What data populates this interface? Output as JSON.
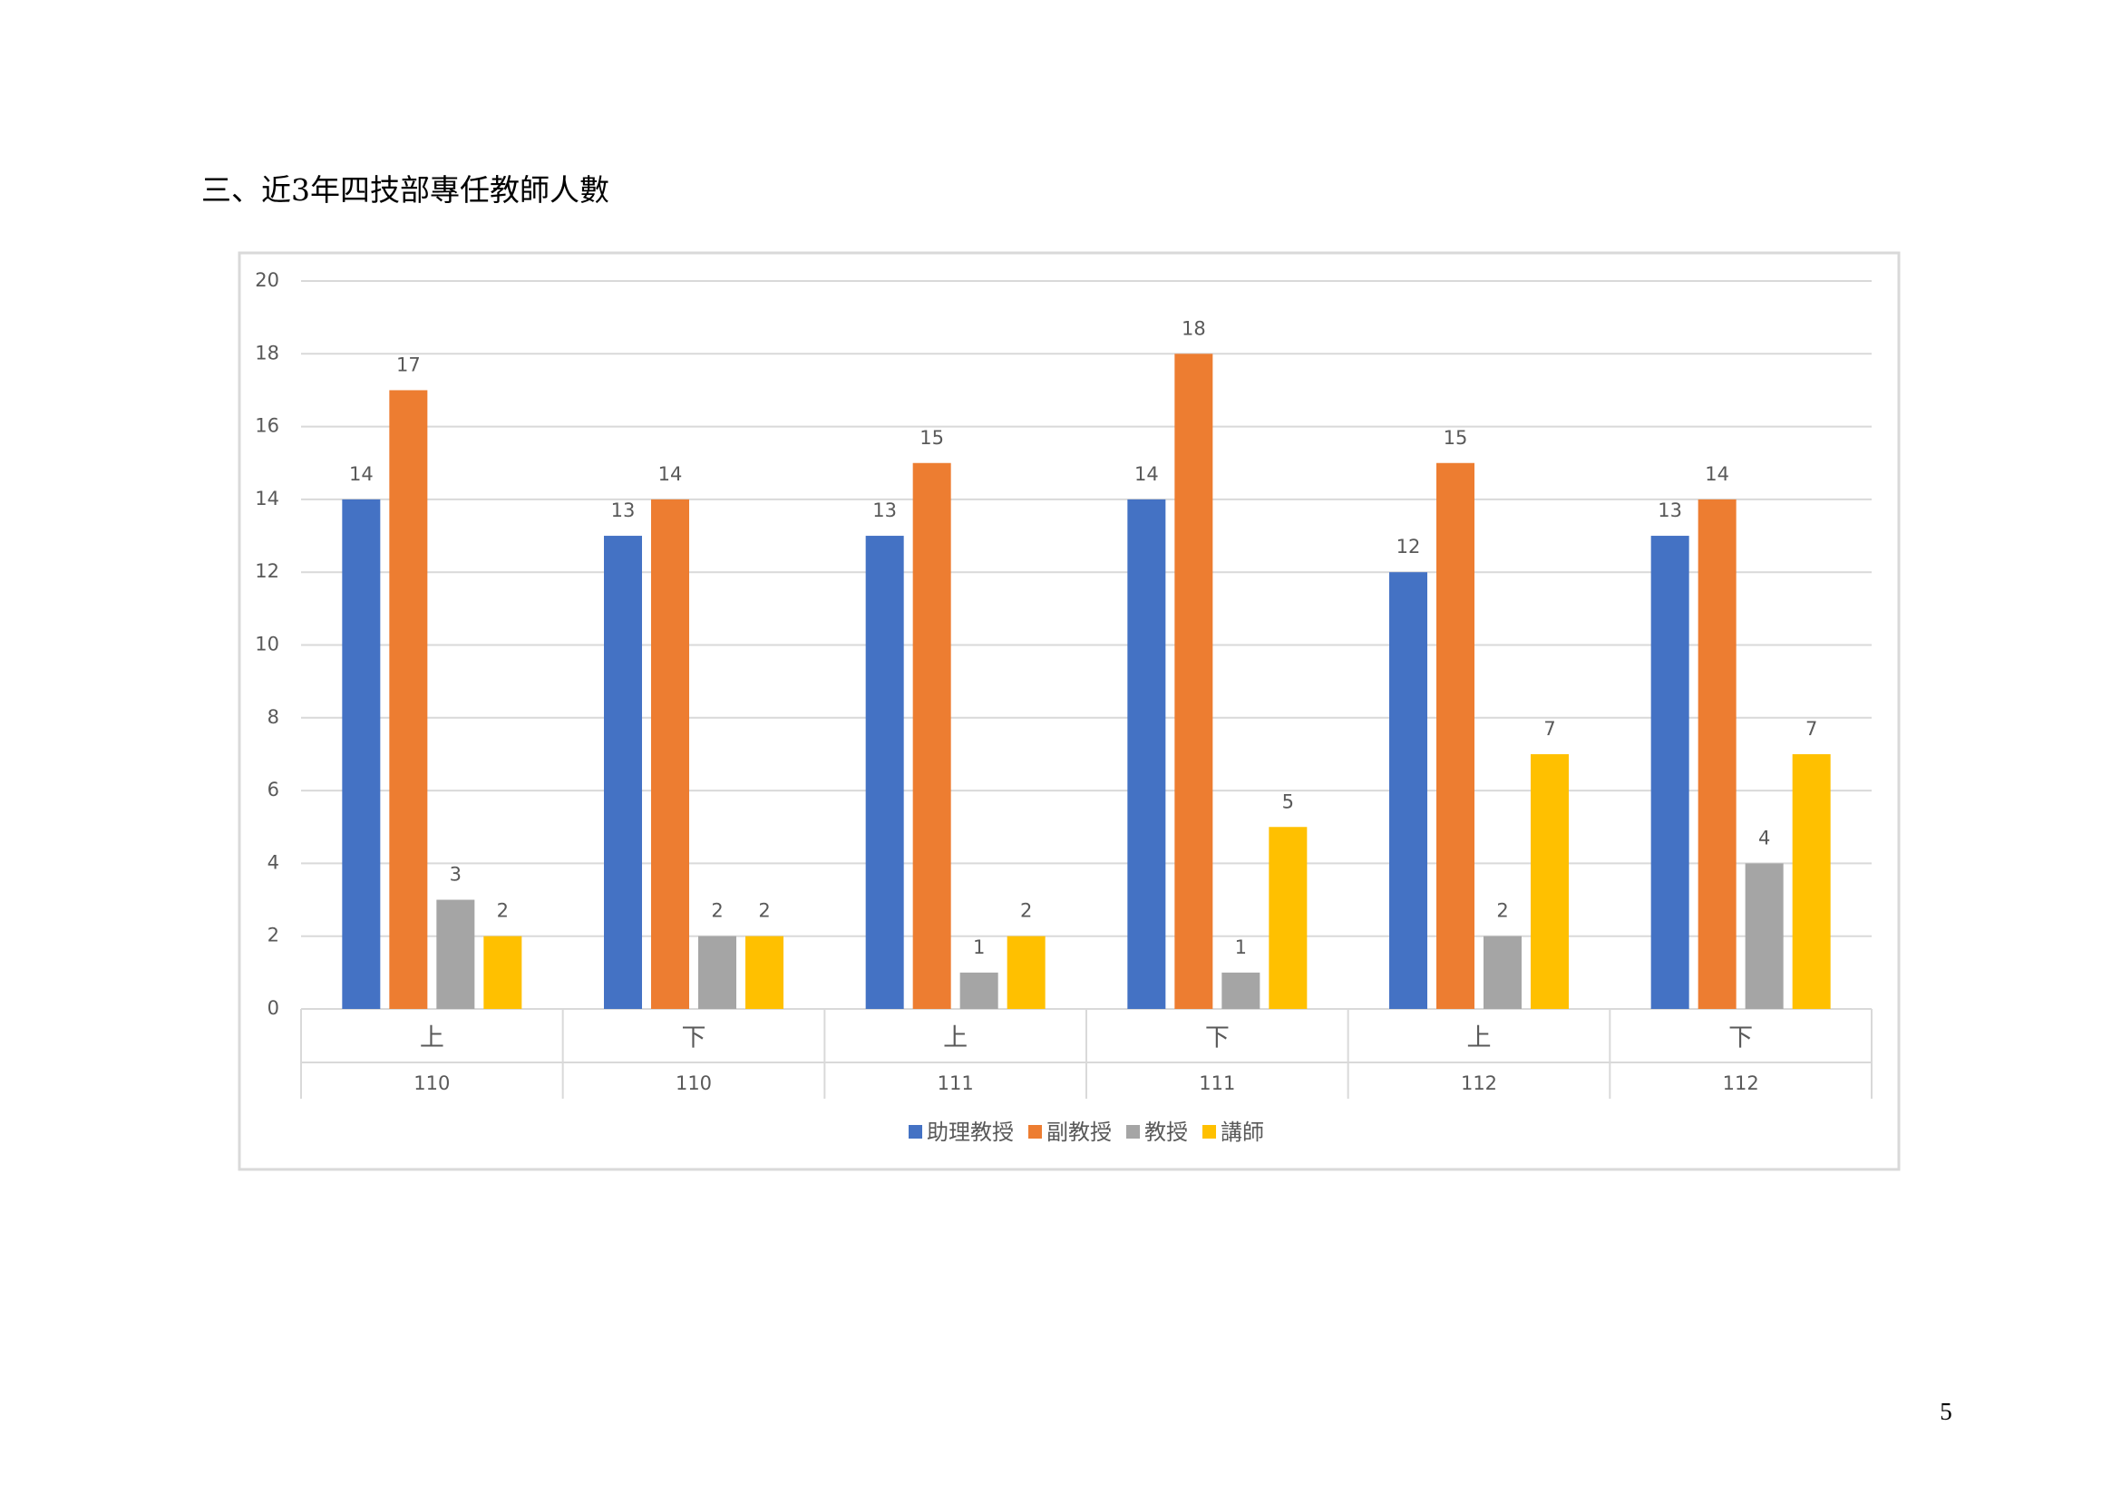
{
  "header": {
    "title": "三、近3年四技部專任教師人數"
  },
  "page_number": "5",
  "chart_data": {
    "type": "bar",
    "categories": [
      "上",
      "下",
      "上",
      "下",
      "上",
      "下"
    ],
    "category_groups": [
      "110",
      "110",
      "111",
      "111",
      "112",
      "112"
    ],
    "series": [
      {
        "name": "助理教授",
        "color": "#4472c4",
        "values": [
          14,
          13,
          13,
          14,
          12,
          13
        ]
      },
      {
        "name": "副教授",
        "color": "#ed7d31",
        "values": [
          17,
          14,
          15,
          18,
          15,
          14
        ]
      },
      {
        "name": "教授",
        "color": "#a5a5a5",
        "values": [
          3,
          2,
          1,
          1,
          2,
          4
        ]
      },
      {
        "name": "講師",
        "color": "#ffc000",
        "values": [
          2,
          2,
          2,
          5,
          7,
          7
        ]
      }
    ],
    "ylim": [
      0,
      20
    ],
    "yticks": [
      0,
      2,
      4,
      6,
      8,
      10,
      12,
      14,
      16,
      18,
      20
    ],
    "grid": true,
    "legend": "bottom"
  }
}
